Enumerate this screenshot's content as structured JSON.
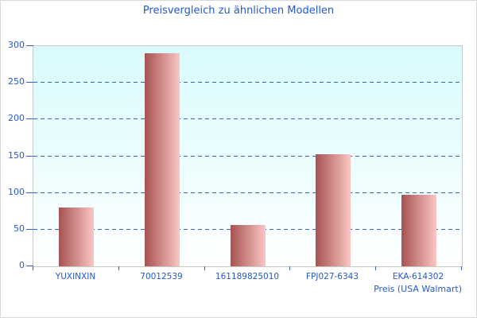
{
  "chart_data": {
    "type": "bar",
    "title": "Preisvergleich zu ähnlichen Modellen",
    "categories": [
      "YUXINXIN",
      "70012539",
      "161189825010",
      "FPJ027-6343",
      "EKA-614302"
    ],
    "values": [
      80,
      290,
      56,
      153,
      97
    ],
    "xlabel": "Preis (USA Walmart)",
    "ylabel": "",
    "ylim": [
      0,
      300
    ],
    "yticks": [
      0,
      50,
      100,
      150,
      200,
      250,
      300
    ],
    "grid": "horizontal-dashed",
    "legend": "none",
    "colors": {
      "text": "#2459d0",
      "grid_line": "#3565c4",
      "bar_gradient_left": "#a65351",
      "bar_gradient_right": "#fbc6c4",
      "plot_bg_top": "#d9fbfd",
      "plot_bg_bottom": "#feffff",
      "plot_border": "#c9c9c9",
      "frame_border": "#d9d9d9"
    }
  }
}
